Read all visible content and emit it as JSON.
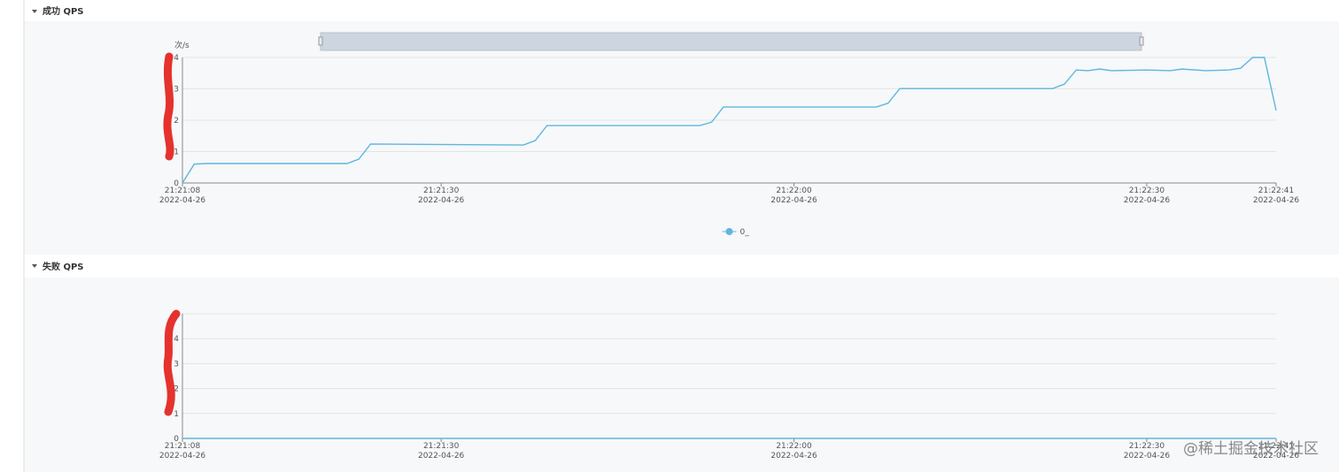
{
  "chart_data": [
    {
      "type": "line",
      "title": "成功 QPS",
      "y_unit": "次/s",
      "x": [
        "2022-04-26 21:21:08",
        "2022-04-26 21:21:09",
        "2022-04-26 21:21:10",
        "2022-04-26 21:21:22",
        "2022-04-26 21:21:23",
        "2022-04-26 21:21:24",
        "2022-04-26 21:21:37",
        "2022-04-26 21:21:38",
        "2022-04-26 21:21:39",
        "2022-04-26 21:21:52",
        "2022-04-26 21:21:53",
        "2022-04-26 21:21:54",
        "2022-04-26 21:22:07",
        "2022-04-26 21:22:08",
        "2022-04-26 21:22:09",
        "2022-04-26 21:22:22",
        "2022-04-26 21:22:23",
        "2022-04-26 21:22:24",
        "2022-04-26 21:22:25",
        "2022-04-26 21:22:26",
        "2022-04-26 21:22:27",
        "2022-04-26 21:22:30",
        "2022-04-26 21:22:32",
        "2022-04-26 21:22:33",
        "2022-04-26 21:22:35",
        "2022-04-26 21:22:37",
        "2022-04-26 21:22:38",
        "2022-04-26 21:22:39",
        "2022-04-26 21:22:40",
        "2022-04-26 21:22:41"
      ],
      "series": [
        {
          "name": "0_",
          "color": "#5fb6e0",
          "values": [
            0,
            0.6,
            0.62,
            0.62,
            0.76,
            1.24,
            1.21,
            1.35,
            1.83,
            1.83,
            1.94,
            2.42,
            2.42,
            2.54,
            3.01,
            3.01,
            3.15,
            3.6,
            3.58,
            3.63,
            3.58,
            3.6,
            3.58,
            3.63,
            3.58,
            3.6,
            3.66,
            4,
            4,
            2.31
          ]
        }
      ],
      "xlim": [
        "2022-04-26 21:21:08",
        "2022-04-26 21:22:41"
      ],
      "xticks": [
        {
          "value": "2022-04-26 21:21:08",
          "label": "21:21:08\n2022-04-26"
        },
        {
          "value": "2022-04-26 21:21:30",
          "label": "21:21:30\n2022-04-26"
        },
        {
          "value": "2022-04-26 21:22:00",
          "label": "21:22:00\n2022-04-26"
        },
        {
          "value": "2022-04-26 21:22:30",
          "label": "21:22:30\n2022-04-26"
        },
        {
          "value": "2022-04-26 21:22:41",
          "label": "21:22:41\n2022-04-26"
        }
      ],
      "ylim": [
        0,
        4
      ],
      "yticks": [
        0,
        1,
        2,
        3,
        4
      ],
      "grid": true,
      "legend": "bottom"
    },
    {
      "type": "line",
      "title": "失败 QPS",
      "x": [
        "2022-04-26 21:21:08",
        "2022-04-26 21:22:41"
      ],
      "series": [
        {
          "color": "#5fb6e0",
          "values": [
            0,
            0
          ]
        }
      ],
      "xlim": [
        "2022-04-26 21:21:08",
        "2022-04-26 21:22:41"
      ],
      "xticks": [
        {
          "value": "2022-04-26 21:21:08",
          "label": "21:21:08\n2022-04-26"
        },
        {
          "value": "2022-04-26 21:21:30",
          "label": "21:21:30\n2022-04-26"
        },
        {
          "value": "2022-04-26 21:22:00",
          "label": "21:22:00\n2022-04-26"
        },
        {
          "value": "2022-04-26 21:22:30",
          "label": "21:22:30\n2022-04-26"
        },
        {
          "value": "2022-04-26 21:22:41",
          "label": "21:22:41\n2022-04-26"
        }
      ],
      "ylim": [
        0,
        5
      ],
      "yticks": [
        0,
        1,
        2,
        3,
        4,
        5
      ],
      "grid": true
    },
    {
      "type": "note",
      "watermark": "@稀土掘金技术社区"
    }
  ]
}
